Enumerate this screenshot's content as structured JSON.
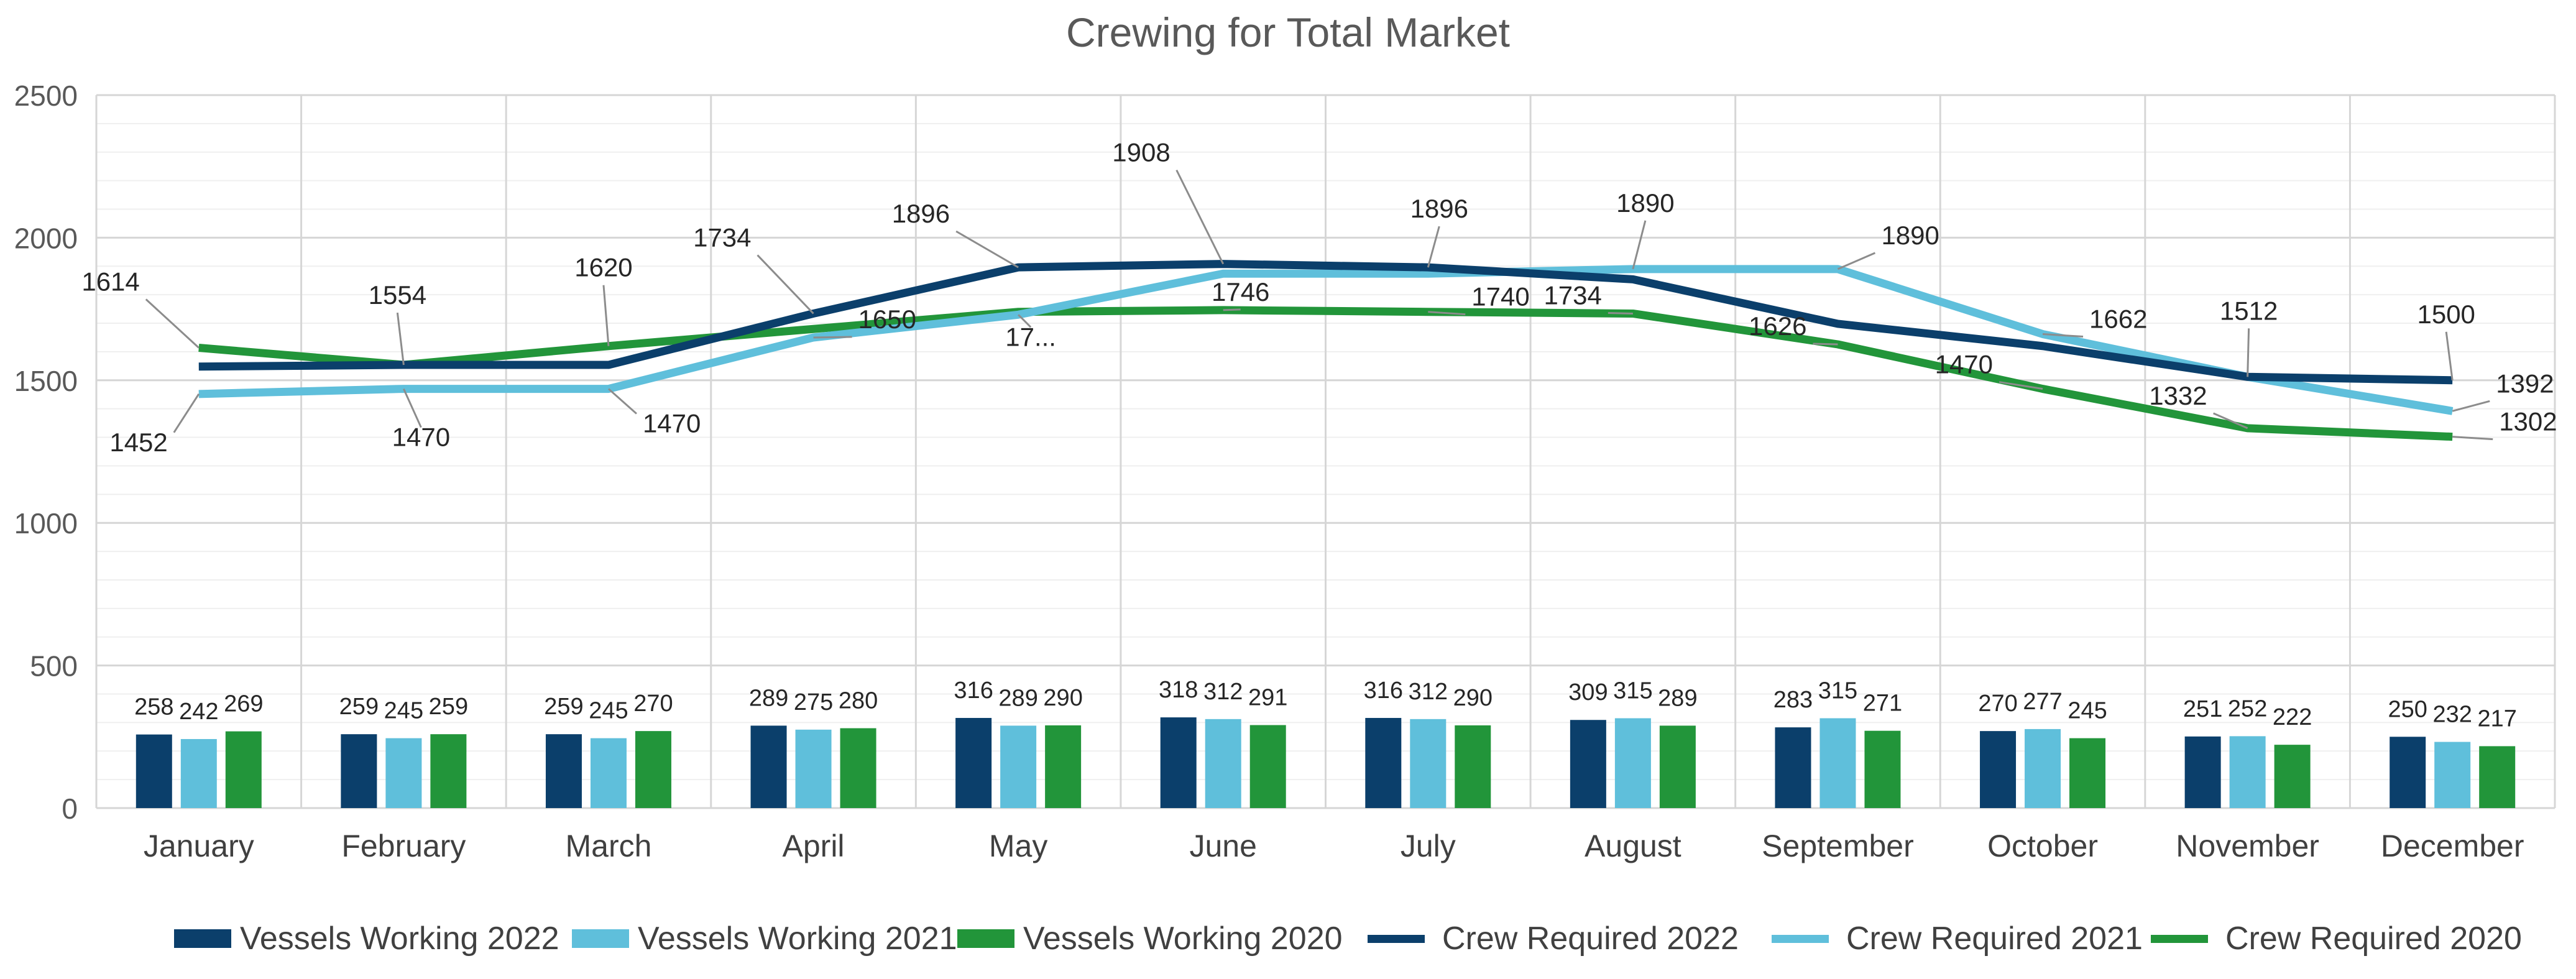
{
  "chart_data": {
    "type": "bar",
    "title": "Crewing for Total Market",
    "xlabel": "",
    "ylabel": "",
    "ylim": [
      0,
      2500
    ],
    "yticks": [
      0,
      500,
      1000,
      1500,
      2000,
      2500
    ],
    "grid": true,
    "legend_position": "bottom",
    "categories": [
      "January",
      "February",
      "March",
      "April",
      "May",
      "June",
      "July",
      "August",
      "September",
      "October",
      "November",
      "December"
    ],
    "series": [
      {
        "name": "Vessels Working 2022",
        "kind": "bar",
        "color": "#0b3f6b",
        "values": [
          258,
          259,
          259,
          289,
          316,
          318,
          316,
          309,
          283,
          270,
          251,
          250
        ]
      },
      {
        "name": "Vessels Working 2021",
        "kind": "bar",
        "color": "#5fbfdb",
        "values": [
          242,
          245,
          245,
          275,
          289,
          312,
          312,
          315,
          315,
          277,
          252,
          232
        ]
      },
      {
        "name": "Vessels Working 2020",
        "kind": "bar",
        "color": "#22953a",
        "values": [
          269,
          259,
          270,
          280,
          290,
          291,
          290,
          289,
          271,
          245,
          222,
          217
        ]
      },
      {
        "name": "Crew Required 2022",
        "kind": "line",
        "color": "#0b3f6b",
        "values": [
          1548,
          1554,
          1554,
          1734,
          1896,
          1908,
          1896,
          1854,
          1698,
          1620,
          1512,
          1500
        ],
        "labels": [
          "",
          "1554",
          "",
          "1734",
          "1896",
          "1908",
          "1896",
          "",
          "",
          "",
          "1512",
          "1500"
        ]
      },
      {
        "name": "Crew Required 2021",
        "kind": "line",
        "color": "#5fbfdb",
        "values": [
          1452,
          1470,
          1470,
          1650,
          1730,
          1874,
          1874,
          1890,
          1890,
          1662,
          1512,
          1392
        ],
        "labels": [
          "1452",
          "1470",
          "1470",
          "1650",
          "17...",
          "",
          "",
          "1890",
          "1890",
          "1662",
          "",
          "1392"
        ]
      },
      {
        "name": "Crew Required 2020",
        "kind": "line",
        "color": "#22953a",
        "values": [
          1614,
          1554,
          1620,
          1680,
          1740,
          1746,
          1740,
          1734,
          1626,
          1470,
          1332,
          1302
        ],
        "labels": [
          "1614",
          "",
          "1620",
          "",
          "",
          "1746",
          "1740",
          "1734",
          "1626",
          "1470",
          "1332",
          "1302"
        ]
      }
    ]
  }
}
